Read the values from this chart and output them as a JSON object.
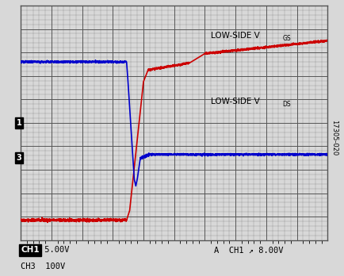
{
  "title": "",
  "bg_color": "#d8d8d8",
  "plot_bg_color": "#d8d8d8",
  "grid_color": "#555555",
  "ch1_color": "#cc0000",
  "ch3_color": "#0000cc",
  "label_vgs": "LOW-SIDE V",
  "label_vgs_sub": "GS",
  "label_vds": "LOW-SIDE V",
  "label_vds_sub": "DS",
  "ch1_label": "CH1",
  "ch1_scale": "5.00V",
  "ch3_scale": "100V",
  "trigger_label": "A  CH1",
  "trigger_scale": "8.00V",
  "watermark": "17305-020",
  "ch1_marker": "1",
  "ch3_marker": "3",
  "xlim": [
    0,
    10
  ],
  "ylim": [
    0,
    10
  ],
  "grid_divisions": 10
}
